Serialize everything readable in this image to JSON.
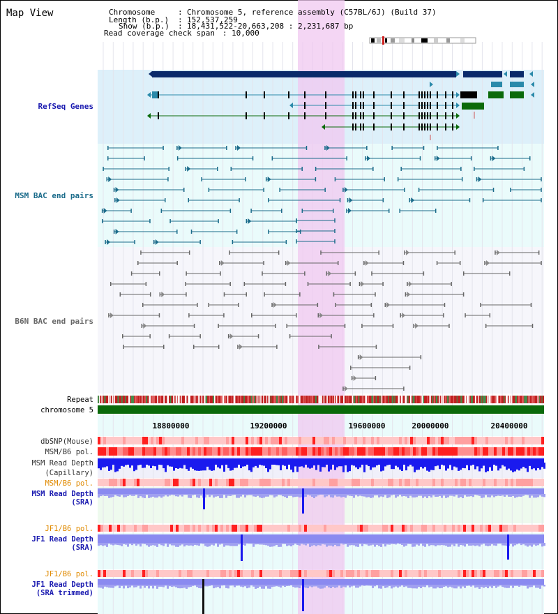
{
  "title": "Map View",
  "header": {
    "row1_label": "Chromosome",
    "row1_value": "Chromosome 5, reference assembly (C57BL/6J) (Build 37)",
    "row2_label": "Length (b.p.)",
    "row2_value": "152,537,259",
    "row3_label": "Show (b.p.)",
    "row3_value": "18,431,522-20,663,208 : 2,231,687 bp",
    "row4_label": "Read coverage check span",
    "row4_value": "10,000"
  },
  "tracks": {
    "refseq": "RefSeq Genes",
    "msm_bac": "MSM BAC end pairs",
    "b6n_bac": "B6N BAC end pairs",
    "repeat": "Repeat",
    "chromosome": "chromosome 5",
    "dbsnp": "dbSNP(Mouse)",
    "msm_pol1": "MSM/B6 pol.",
    "msm_depth_cap_1": "MSM Read Depth",
    "msm_depth_cap_2": "(Capillary)",
    "msm_pol2": "MSM/B6 pol.",
    "msm_depth_sra_1": "MSM Read Depth",
    "msm_depth_sra_2": "(SRA)",
    "jf1_pol1": "JF1/B6 pol.",
    "jf1_depth_sra_1": "JF1 Read Depth",
    "jf1_depth_sra_2": "(SRA)",
    "jf1_pol2": "JF1/B6 pol.",
    "jf1_depth_trim_1": "JF1 Read Depth",
    "jf1_depth_trim_2": "(SRA trimmed)"
  },
  "ruler": {
    "ticks": [
      "18800000",
      "19200000",
      "19600000",
      "20000000",
      "20400000"
    ]
  },
  "colors": {
    "refseq_label": "#1a1ab0",
    "msm_label": "#1a6b8a",
    "b6n_label": "#666666",
    "pol_orange": "#e08a00",
    "depth_blue": "#1a1ab0",
    "highlight": "#f0c8f0",
    "gene_dark": "#0a2a6a",
    "gene_teal": "#2a8aaa",
    "gene_green": "#0a6a0a"
  }
}
